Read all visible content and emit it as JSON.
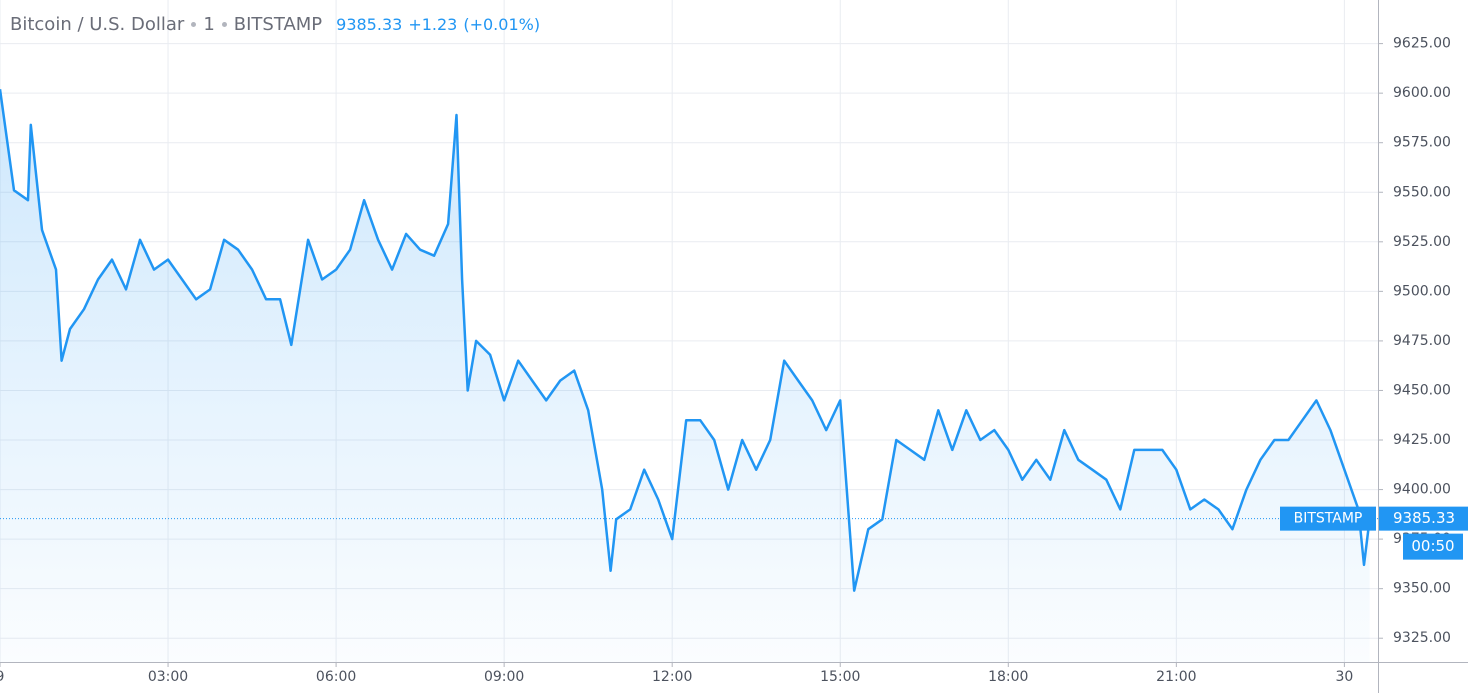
{
  "chart_data": {
    "type": "area",
    "title": "Bitcoin / U.S. Dollar",
    "interval": "1",
    "exchange": "BITSTAMP",
    "last_price": 9385.33,
    "change": "+1.23",
    "change_percent": "(+0.01%)",
    "countdown": "00:50",
    "color": "#2196f3",
    "x": [
      0,
      0.25,
      0.5,
      0.55,
      0.75,
      1,
      1.1,
      1.25,
      1.5,
      1.75,
      2,
      2.25,
      2.5,
      2.75,
      3,
      3.25,
      3.5,
      3.75,
      4,
      4.25,
      4.5,
      4.75,
      5,
      5.2,
      5.5,
      5.75,
      6,
      6.25,
      6.5,
      6.75,
      7,
      7.25,
      7.5,
      7.75,
      8,
      8.15,
      8.25,
      8.35,
      8.5,
      8.75,
      9,
      9.25,
      9.5,
      9.75,
      10,
      10.25,
      10.5,
      10.75,
      10.9,
      11,
      11.25,
      11.5,
      11.75,
      12,
      12.25,
      12.5,
      12.75,
      13,
      13.25,
      13.5,
      13.75,
      14,
      14.25,
      14.5,
      14.75,
      15,
      15.25,
      15.5,
      15.75,
      16,
      16.25,
      16.5,
      16.75,
      17,
      17.25,
      17.5,
      17.75,
      18,
      18.25,
      18.5,
      18.75,
      19,
      19.25,
      19.5,
      19.75,
      20,
      20.25,
      20.5,
      20.75,
      21,
      21.25,
      21.5,
      21.75,
      22,
      22.25,
      22.5,
      22.75,
      23,
      23.25,
      23.5,
      23.75,
      24,
      24.25,
      24.35,
      24.45
    ],
    "values": [
      9602,
      9551,
      9546,
      9584,
      9531,
      9511,
      9465,
      9481,
      9491,
      9506,
      9516,
      9501,
      9526,
      9511,
      9516,
      9506,
      9496,
      9501,
      9526,
      9521,
      9511,
      9496,
      9496,
      9473,
      9526,
      9506,
      9511,
      9521,
      9546,
      9526,
      9511,
      9529,
      9521,
      9518,
      9534,
      9589,
      9506,
      9450,
      9475,
      9468,
      9445,
      9465,
      9455,
      9445,
      9455,
      9460,
      9440,
      9400,
      9359,
      9385,
      9390,
      9410,
      9395,
      9375,
      9435,
      9435,
      9425,
      9400,
      9425,
      9410,
      9425,
      9465,
      9455,
      9445,
      9430,
      9445,
      9349,
      9380,
      9385,
      9425,
      9420,
      9415,
      9440,
      9420,
      9440,
      9425,
      9430,
      9420,
      9405,
      9415,
      9405,
      9430,
      9415,
      9410,
      9405,
      9390,
      9420,
      9420,
      9420,
      9410,
      9390,
      9395,
      9390,
      9380,
      9400,
      9415,
      9425,
      9425,
      9435,
      9445,
      9430,
      9410,
      9390,
      9362,
      9385
    ],
    "xlim": [
      0,
      24.6
    ],
    "ylim": [
      9313,
      9647
    ],
    "xticks": [
      {
        "value": 0,
        "label": "9"
      },
      {
        "value": 3,
        "label": "03:00"
      },
      {
        "value": 6,
        "label": "06:00"
      },
      {
        "value": 9,
        "label": "09:00"
      },
      {
        "value": 12,
        "label": "12:00"
      },
      {
        "value": 15,
        "label": "15:00"
      },
      {
        "value": 18,
        "label": "18:00"
      },
      {
        "value": 21,
        "label": "21:00"
      },
      {
        "value": 24,
        "label": "30"
      }
    ],
    "yticks": [
      {
        "value": 9325,
        "label": "9325.00"
      },
      {
        "value": 9350,
        "label": "9350.00"
      },
      {
        "value": 9375,
        "label": "9375.00"
      },
      {
        "value": 9400,
        "label": "9400.00"
      },
      {
        "value": 9425,
        "label": "9425.00"
      },
      {
        "value": 9450,
        "label": "9450.00"
      },
      {
        "value": 9475,
        "label": "9475.00"
      },
      {
        "value": 9500,
        "label": "9500.00"
      },
      {
        "value": 9525,
        "label": "9525.00"
      },
      {
        "value": 9550,
        "label": "9550.00"
      },
      {
        "value": 9575,
        "label": "9575.00"
      },
      {
        "value": 9600,
        "label": "9600.00"
      },
      {
        "value": 9625,
        "label": "9625.00"
      }
    ],
    "grid": true
  }
}
